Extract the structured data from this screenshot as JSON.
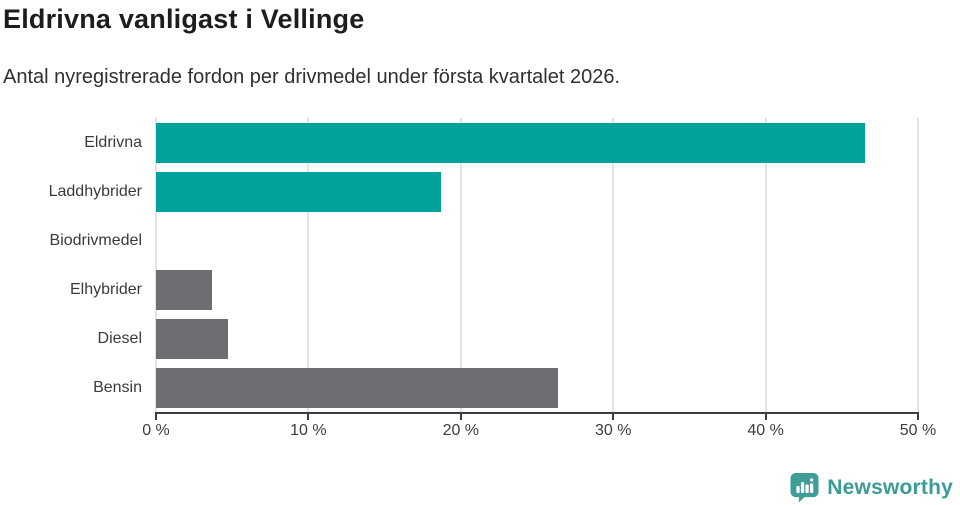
{
  "header": {
    "title": "Eldrivna vanligast i Vellinge",
    "subtitle": "Antal nyregistrerade fordon per drivmedel under första kvartalet 2026."
  },
  "colors": {
    "teal": "#00a29b",
    "gray": "#6d6d72",
    "axis": "#3d3d3d",
    "grid": "#e3e3e3",
    "label_text": "#3a3a3a",
    "title_text": "#1d1d1b",
    "brand_teal": "#3b9b95"
  },
  "chart_data": {
    "type": "bar",
    "orientation": "horizontal",
    "title": "Eldrivna vanligast i Vellinge",
    "subtitle": "Antal nyregistrerade fordon per drivmedel under första kvartalet 2026.",
    "categories": [
      "Eldrivna",
      "Laddhybrider",
      "Biodrivmedel",
      "Elhybrider",
      "Diesel",
      "Bensin"
    ],
    "values": [
      46.5,
      18.7,
      0,
      3.7,
      4.7,
      26.4
    ],
    "bar_colors": [
      "#00a29b",
      "#00a29b",
      "#6d6d72",
      "#6d6d72",
      "#6d6d72",
      "#6d6d72"
    ],
    "xlabel": "",
    "ylabel": "",
    "xlim": [
      0,
      50
    ],
    "x_ticks": [
      0,
      10,
      20,
      30,
      40,
      50
    ],
    "x_tick_labels": [
      "0 %",
      "10 %",
      "20 %",
      "30 %",
      "40 %",
      "50 %"
    ],
    "grid": "vertical",
    "legend": "none"
  },
  "branding": {
    "name": "Newsworthy",
    "icon": "newsworthy-chart-bubble-icon"
  }
}
